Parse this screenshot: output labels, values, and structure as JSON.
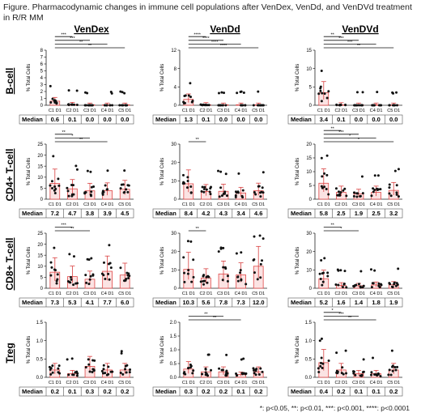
{
  "title": "Figure. Pharmacodynamic changes in immune cell populations after VenDex, VenDd, and VenDVd treatment in R/R MM",
  "footnote": "*: p<0.05, **: p<0.01, ***: p<0.001, ****: p<0.0001",
  "colors": {
    "bar_fill": "#fbe3e3",
    "bar_edge": "#e04848",
    "errorbar": "#d94040",
    "point": "#111111",
    "bracket": "#111111"
  },
  "columns": [
    "VenDex",
    "VenDd",
    "VenDVd"
  ],
  "rows": [
    "B-cell",
    "CD4+ T-cell",
    "CD8+ T-cell",
    "Treg"
  ],
  "median_label": "Median",
  "chart_data": [
    {
      "type": "bar",
      "row": "B-cell",
      "column": "VenDex",
      "ylabel": "% Total Cells",
      "categories": [
        "C1 D1",
        "C2 D1",
        "C3 D1",
        "C4 D1",
        "C5 D1"
      ],
      "ylim": [
        0,
        8
      ],
      "yticks": [
        "0",
        "1",
        "2",
        "3",
        "4",
        "5",
        "6",
        "7",
        "8"
      ],
      "values": [
        0.6,
        0.1,
        0.0,
        0.0,
        0.0
      ],
      "medians": [
        "0.6",
        "0.1",
        "0.0",
        "0.0",
        "0.0"
      ],
      "brackets": [
        {
          "from": 0,
          "to": 1,
          "label": "***"
        },
        {
          "from": 0,
          "to": 2,
          "label": "***"
        },
        {
          "from": 0,
          "to": 3,
          "label": "**"
        },
        {
          "from": 0,
          "to": 4,
          "label": "**"
        }
      ]
    },
    {
      "type": "bar",
      "row": "B-cell",
      "column": "VenDd",
      "ylabel": "% Total Cells",
      "categories": [
        "C1 D1",
        "C2 D1",
        "C3 D1",
        "C4 D1",
        "C5 D1"
      ],
      "ylim": [
        0,
        12
      ],
      "yticks": [
        "0",
        "4",
        "8",
        "12"
      ],
      "values": [
        1.3,
        0.1,
        0.0,
        0.0,
        0.0
      ],
      "medians": [
        "1.3",
        "0.1",
        "0.0",
        "0.0",
        "0.0"
      ],
      "brackets": [
        {
          "from": 0,
          "to": 1,
          "label": "****"
        },
        {
          "from": 0,
          "to": 2,
          "label": "****"
        },
        {
          "from": 0,
          "to": 3,
          "label": "****"
        },
        {
          "from": 0,
          "to": 4,
          "label": "****"
        }
      ]
    },
    {
      "type": "bar",
      "row": "B-cell",
      "column": "VenDVd",
      "ylabel": "% Total Cells",
      "categories": [
        "C1 D1",
        "C2 D1",
        "C3 D1",
        "C4 D1",
        "C5 D1"
      ],
      "ylim": [
        0,
        15
      ],
      "yticks": [
        "0",
        "5",
        "10",
        "15"
      ],
      "values": [
        3.4,
        0.1,
        0.0,
        0.0,
        0.0
      ],
      "medians": [
        "3.4",
        "0.1",
        "0.0",
        "0.0",
        "0.0"
      ],
      "brackets": [
        {
          "from": 0,
          "to": 1,
          "label": "**"
        },
        {
          "from": 0,
          "to": 2,
          "label": "***"
        },
        {
          "from": 0,
          "to": 3,
          "label": "***"
        },
        {
          "from": 0,
          "to": 4,
          "label": "**"
        }
      ]
    },
    {
      "type": "bar",
      "row": "CD4+ T-cell",
      "column": "VenDex",
      "ylabel": "% Total Cells",
      "categories": [
        "C1 D1",
        "C2 D1",
        "C3 D1",
        "C4 D1",
        "C5 D1"
      ],
      "ylim": [
        0,
        25
      ],
      "yticks": [
        "0",
        "5",
        "10",
        "15",
        "20",
        "25"
      ],
      "values": [
        7.2,
        4.7,
        3.8,
        3.9,
        4.5
      ],
      "medians": [
        "7.2",
        "4.7",
        "3.8",
        "3.9",
        "4.5"
      ],
      "brackets": [
        {
          "from": 0,
          "to": 1,
          "label": "**"
        },
        {
          "from": 0,
          "to": 2,
          "label": "*"
        },
        {
          "from": 0,
          "to": 3,
          "label": "**"
        }
      ]
    },
    {
      "type": "bar",
      "row": "CD4+ T-cell",
      "column": "VenDd",
      "ylabel": "% Total Cells",
      "categories": [
        "C1 D1",
        "C2 D1",
        "C3 D1",
        "C4 D1",
        "C5 D1"
      ],
      "ylim": [
        0,
        30
      ],
      "yticks": [
        "0",
        "10",
        "20",
        "30"
      ],
      "values": [
        8.4,
        4.2,
        4.3,
        3.4,
        4.6
      ],
      "medians": [
        "8.4",
        "4.2",
        "4.3",
        "3.4",
        "4.6"
      ],
      "brackets": [
        {
          "from": 0,
          "to": 1,
          "label": "**"
        }
      ]
    },
    {
      "type": "bar",
      "row": "CD4+ T-cell",
      "column": "VenDVd",
      "ylabel": "% Total Cells",
      "categories": [
        "C1 D1",
        "C2 D1",
        "C3 D1",
        "C4 D1",
        "C5 D1"
      ],
      "ylim": [
        0,
        20
      ],
      "yticks": [
        "0",
        "5",
        "10",
        "15",
        "20"
      ],
      "values": [
        5.8,
        2.5,
        1.9,
        2.5,
        3.2
      ],
      "medians": [
        "5.8",
        "2.5",
        "1.9",
        "2.5",
        "3.2"
      ],
      "brackets": [
        {
          "from": 0,
          "to": 1,
          "label": "**"
        },
        {
          "from": 0,
          "to": 2,
          "label": "***"
        },
        {
          "from": 0,
          "to": 3,
          "label": "*"
        },
        {
          "from": 0,
          "to": 4,
          "label": "*"
        }
      ]
    },
    {
      "type": "bar",
      "row": "CD8+ T-cell",
      "column": "VenDex",
      "ylabel": "% Total Cells",
      "categories": [
        "C1 D1",
        "C2 D1",
        "C3 D1",
        "C4 D1",
        "C5 D1"
      ],
      "ylim": [
        0,
        25
      ],
      "yticks": [
        "0",
        "5",
        "10",
        "15",
        "20",
        "25"
      ],
      "values": [
        7.3,
        5.3,
        4.1,
        7.7,
        6.0
      ],
      "medians": [
        "7.3",
        "5.3",
        "4.1",
        "7.7",
        "6.0"
      ],
      "brackets": [
        {
          "from": 0,
          "to": 1,
          "label": "***"
        },
        {
          "from": 0,
          "to": 2,
          "label": "**"
        }
      ]
    },
    {
      "type": "bar",
      "row": "CD8+ T-cell",
      "column": "VenDd",
      "ylabel": "% Total Cells",
      "categories": [
        "C1 D1",
        "C2 D1",
        "C3 D1",
        "C4 D1",
        "C5 D1"
      ],
      "ylim": [
        0,
        30
      ],
      "yticks": [
        "0",
        "10",
        "20",
        "30"
      ],
      "values": [
        10.3,
        5.6,
        7.8,
        7.3,
        12.0
      ],
      "medians": [
        "10.3",
        "5.6",
        "7.8",
        "7.3",
        "12.0"
      ],
      "brackets": [
        {
          "from": 0,
          "to": 1,
          "label": "**"
        }
      ]
    },
    {
      "type": "bar",
      "row": "CD8+ T-cell",
      "column": "VenDVd",
      "ylabel": "% Total Cells",
      "categories": [
        "C1 D1",
        "C2 D1",
        "C3 D1",
        "C4 D1",
        "C5 D1"
      ],
      "ylim": [
        0,
        30
      ],
      "yticks": [
        "0",
        "10",
        "20",
        "30"
      ],
      "values": [
        5.2,
        1.6,
        1.4,
        1.8,
        1.9
      ],
      "medians": [
        "5.2",
        "1.6",
        "1.4",
        "1.8",
        "1.9"
      ],
      "brackets": [
        {
          "from": 0,
          "to": 1,
          "label": "**"
        },
        {
          "from": 0,
          "to": 2,
          "label": "*"
        }
      ]
    },
    {
      "type": "bar",
      "row": "Treg",
      "column": "VenDex",
      "ylabel": "% Total Cells",
      "categories": [
        "C1 D1",
        "C2 D1",
        "C3 D1",
        "C4 D1",
        "C5 D1"
      ],
      "ylim": [
        0,
        1.5
      ],
      "yticks": [
        "0.0",
        "0.5",
        "1.0",
        "1.5"
      ],
      "values": [
        0.2,
        0.1,
        0.3,
        0.2,
        0.2
      ],
      "medians": [
        "0.2",
        "0.1",
        "0.3",
        "0.2",
        "0.2"
      ],
      "brackets": []
    },
    {
      "type": "bar",
      "row": "Treg",
      "column": "VenDd",
      "ylabel": "% Total Cells",
      "categories": [
        "C1 D1",
        "C2 D1",
        "C3 D1",
        "C4 D1",
        "C5 D1"
      ],
      "ylim": [
        0,
        2.0
      ],
      "yticks": [
        "0.0",
        "0.5",
        "1.0",
        "1.5",
        "2.0"
      ],
      "values": [
        0.3,
        0.2,
        0.2,
        0.1,
        0.2
      ],
      "medians": [
        "0.3",
        "0.2",
        "0.2",
        "0.1",
        "0.2"
      ],
      "brackets": [
        {
          "from": 0,
          "to": 2,
          "label": "**"
        },
        {
          "from": 0,
          "to": 3,
          "label": "**"
        }
      ]
    },
    {
      "type": "bar",
      "row": "Treg",
      "column": "VenDVd",
      "ylabel": "% Total Cells",
      "categories": [
        "C1 D1",
        "C2 D1",
        "C3 D1",
        "C4 D1",
        "C5 D1"
      ],
      "ylim": [
        0,
        1.5
      ],
      "yticks": [
        "0.0",
        "0.5",
        "1.0",
        "1.5"
      ],
      "values": [
        0.4,
        0.2,
        0.1,
        0.1,
        0.2
      ],
      "medians": [
        "0.4",
        "0.2",
        "0.1",
        "0.1",
        "0.2"
      ],
      "brackets": [
        {
          "from": 0,
          "to": 1,
          "label": "*"
        },
        {
          "from": 0,
          "to": 2,
          "label": "***"
        },
        {
          "from": 0,
          "to": 3,
          "label": "**"
        }
      ]
    }
  ]
}
